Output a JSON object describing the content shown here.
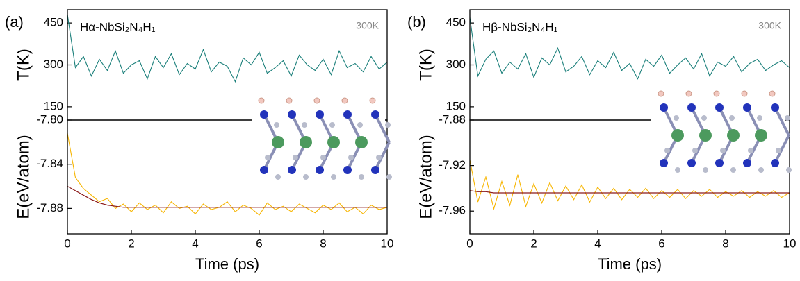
{
  "chart_data": [
    {
      "type": "line",
      "panel": "(a)",
      "annotation": "Hα-NbSi₂N₄H₁",
      "temperature": "300K",
      "xlabel": "Time (ps)",
      "x": [
        0,
        0.25,
        0.5,
        0.75,
        1,
        1.25,
        1.5,
        1.75,
        2,
        2.25,
        2.5,
        2.75,
        3,
        3.25,
        3.5,
        3.75,
        4,
        4.25,
        4.5,
        4.75,
        5,
        5.25,
        5.5,
        5.75,
        6,
        6.25,
        6.5,
        6.75,
        7,
        7.25,
        7.5,
        7.75,
        8,
        8.25,
        8.5,
        8.75,
        9,
        9.25,
        9.5,
        9.75,
        10
      ],
      "xlim": [
        0,
        10
      ],
      "xticks": [
        0,
        2,
        4,
        6,
        8,
        10
      ],
      "top": {
        "ylabel": "T(K)",
        "ylim": [
          102.5,
          497.5
        ],
        "yticks": [
          150,
          300,
          450
        ],
        "series": [
          {
            "color": "#1a7f7a",
            "values": [
              480,
              290,
              330,
              260,
              320,
              280,
              350,
              270,
              300,
              315,
              250,
              330,
              290,
              340,
              265,
              305,
              285,
              355,
              275,
              310,
              295,
              240,
              325,
              300,
              345,
              270,
              290,
              315,
              260,
              335,
              300,
              280,
              320,
              265,
              350,
              290,
              305,
              275,
              330,
              285,
              310
            ]
          }
        ]
      },
      "bottom": {
        "ylabel": "E(eV/atom)",
        "ylim": [
          -7.903,
          -7.8
        ],
        "yticks": [
          {
            "value": -7.8,
            "label": "-7.80"
          },
          -7.84,
          -7.88
        ],
        "series": [
          {
            "color": "#f7b500",
            "values": [
              -7.812,
              -7.852,
              -7.862,
              -7.868,
              -7.874,
              -7.871,
              -7.88,
              -7.876,
              -7.883,
              -7.875,
              -7.881,
              -7.877,
              -7.884,
              -7.874,
              -7.88,
              -7.878,
              -7.885,
              -7.876,
              -7.881,
              -7.879,
              -7.874,
              -7.883,
              -7.877,
              -7.88,
              -7.886,
              -7.875,
              -7.881,
              -7.878,
              -7.883,
              -7.876,
              -7.88,
              -7.884,
              -7.877,
              -7.881,
              -7.875,
              -7.883,
              -7.879,
              -7.885,
              -7.877,
              -7.881,
              -7.879
            ]
          },
          {
            "color": "#8b1a1a",
            "values": [
              -7.86,
              -7.864,
              -7.868,
              -7.872,
              -7.875,
              -7.877,
              -7.878,
              -7.879,
              -7.879,
              -7.879,
              -7.879,
              -7.879,
              -7.879,
              -7.879,
              -7.879,
              -7.879,
              -7.879,
              -7.879,
              -7.879,
              -7.879,
              -7.879,
              -7.879,
              -7.879,
              -7.879,
              -7.879,
              -7.879,
              -7.879,
              -7.879,
              -7.879,
              -7.879,
              -7.879,
              -7.879,
              -7.879,
              -7.879,
              -7.879,
              -7.879,
              -7.879,
              -7.879,
              -7.879,
              -7.879,
              -7.879
            ]
          }
        ]
      }
    },
    {
      "type": "line",
      "panel": "(b)",
      "annotation": "Hβ-NbSi₂N₄H₁",
      "temperature": "300K",
      "xlabel": "Time (ps)",
      "x": [
        0,
        0.25,
        0.5,
        0.75,
        1,
        1.25,
        1.5,
        1.75,
        2,
        2.25,
        2.5,
        2.75,
        3,
        3.25,
        3.5,
        3.75,
        4,
        4.25,
        4.5,
        4.75,
        5,
        5.25,
        5.5,
        5.75,
        6,
        6.25,
        6.5,
        6.75,
        7,
        7.25,
        7.5,
        7.75,
        8,
        8.25,
        8.5,
        8.75,
        9,
        9.25,
        9.5,
        9.75,
        10
      ],
      "xlim": [
        0,
        10
      ],
      "xticks": [
        0,
        2,
        4,
        6,
        8,
        10
      ],
      "top": {
        "ylabel": "T(K)",
        "ylim": [
          102.5,
          497.5
        ],
        "yticks": [
          150,
          300,
          450
        ],
        "series": [
          {
            "color": "#1a7f7a",
            "values": [
              470,
              260,
              320,
              350,
              270,
              310,
              285,
              340,
              255,
              325,
              300,
              360,
              275,
              295,
              330,
              265,
              315,
              290,
              345,
              280,
              305,
              250,
              320,
              295,
              335,
              270,
              300,
              325,
              285,
              340,
              260,
              310,
              295,
              330,
              275,
              305,
              320,
              280,
              300,
              315,
              290
            ]
          }
        ]
      },
      "bottom": {
        "ylabel": "E(eV/atom)",
        "ylim": [
          -7.98,
          -7.88
        ],
        "yticks": [
          -7.88,
          -7.92,
          -7.96
        ],
        "series": [
          {
            "color": "#f7b500",
            "values": [
              -7.915,
              -7.952,
              -7.93,
              -7.958,
              -7.934,
              -7.955,
              -7.928,
              -7.956,
              -7.936,
              -7.953,
              -7.935,
              -7.951,
              -7.938,
              -7.95,
              -7.937,
              -7.952,
              -7.939,
              -7.949,
              -7.94,
              -7.95,
              -7.941,
              -7.948,
              -7.94,
              -7.949,
              -7.942,
              -7.948,
              -7.941,
              -7.949,
              -7.942,
              -7.947,
              -7.941,
              -7.948,
              -7.943,
              -7.947,
              -7.942,
              -7.948,
              -7.943,
              -7.947,
              -7.942,
              -7.948,
              -7.944
            ]
          },
          {
            "color": "#8b1a1a",
            "values": [
              -7.942,
              -7.943,
              -7.943,
              -7.944,
              -7.944,
              -7.944,
              -7.944,
              -7.944,
              -7.944,
              -7.944,
              -7.944,
              -7.944,
              -7.944,
              -7.944,
              -7.944,
              -7.944,
              -7.944,
              -7.944,
              -7.944,
              -7.944,
              -7.944,
              -7.944,
              -7.944,
              -7.944,
              -7.944,
              -7.944,
              -7.944,
              -7.944,
              -7.944,
              -7.944,
              -7.944,
              -7.944,
              -7.944,
              -7.944,
              -7.944,
              -7.944,
              -7.944,
              -7.944,
              -7.944,
              -7.944,
              -7.944
            ]
          }
        ]
      }
    }
  ]
}
